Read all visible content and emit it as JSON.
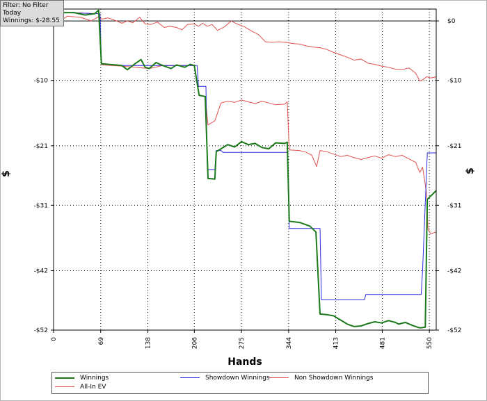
{
  "info_box": {
    "line1": "Filter: No Filter",
    "line2": "Today",
    "line3": "Winnings: $-28.55"
  },
  "colors": {
    "winnings": "#1a7a1a",
    "showdown": "#2a2ae0",
    "non_showdown": "#e05050",
    "all_in_ev": "#e05050",
    "grid": "#000000",
    "zero_line": "#000000"
  },
  "chart_data": {
    "type": "line",
    "xlabel": "Hands",
    "ylabel_left": "$",
    "ylabel_right": "$",
    "xlim": [
      0,
      560
    ],
    "ylim": [
      -52,
      2
    ],
    "x_ticks": [
      0,
      69,
      138,
      206,
      275,
      344,
      413,
      481,
      550
    ],
    "y_ticks_left": [
      -10,
      -21,
      -31,
      -42,
      -52
    ],
    "y_ticks_right": [
      0,
      -10,
      -21,
      -31,
      -42,
      -52
    ],
    "y_tick_labels_left": [
      "-$10",
      "-$21",
      "-$31",
      "-$42",
      "-$52"
    ],
    "y_tick_labels_right": [
      "$0",
      "-$10",
      "-$21",
      "-$31",
      "-$42",
      "-$52"
    ],
    "grid": true,
    "legend_position": "bottom",
    "series": [
      {
        "name": "Winnings",
        "color": "#1a7a1a",
        "points": [
          [
            0,
            0
          ],
          [
            8,
            0
          ],
          [
            14,
            1.4
          ],
          [
            30,
            1.4
          ],
          [
            46,
            1.0
          ],
          [
            60,
            1.2
          ],
          [
            66,
            1.8
          ],
          [
            70,
            -7.2
          ],
          [
            90,
            -7.4
          ],
          [
            100,
            -7.5
          ],
          [
            108,
            -8.2
          ],
          [
            118,
            -7.3
          ],
          [
            128,
            -6.5
          ],
          [
            134,
            -7.8
          ],
          [
            140,
            -8.0
          ],
          [
            150,
            -7.0
          ],
          [
            160,
            -7.5
          ],
          [
            172,
            -8.0
          ],
          [
            180,
            -7.4
          ],
          [
            192,
            -7.8
          ],
          [
            200,
            -7.3
          ],
          [
            206,
            -7.5
          ],
          [
            213,
            -12.5
          ],
          [
            222,
            -12.7
          ],
          [
            226,
            -26.5
          ],
          [
            236,
            -26.6
          ],
          [
            238,
            -22.0
          ],
          [
            245,
            -21.5
          ],
          [
            255,
            -20.8
          ],
          [
            265,
            -21.2
          ],
          [
            275,
            -20.3
          ],
          [
            285,
            -20.8
          ],
          [
            295,
            -20.6
          ],
          [
            305,
            -21.3
          ],
          [
            315,
            -21.5
          ],
          [
            325,
            -20.5
          ],
          [
            338,
            -20.6
          ],
          [
            342,
            -20.4
          ],
          [
            345,
            -33.7
          ],
          [
            360,
            -33.9
          ],
          [
            375,
            -34.5
          ],
          [
            384,
            -35.5
          ],
          [
            390,
            -49.3
          ],
          [
            400,
            -49.4
          ],
          [
            410,
            -49.6
          ],
          [
            420,
            -50.3
          ],
          [
            430,
            -51.0
          ],
          [
            440,
            -51.4
          ],
          [
            450,
            -51.3
          ],
          [
            460,
            -50.9
          ],
          [
            470,
            -50.6
          ],
          [
            480,
            -50.8
          ],
          [
            490,
            -50.4
          ],
          [
            500,
            -50.7
          ],
          [
            505,
            -51.0
          ],
          [
            515,
            -50.7
          ],
          [
            525,
            -51.2
          ],
          [
            535,
            -51.6
          ],
          [
            538,
            -51.6
          ],
          [
            544,
            -51.5
          ],
          [
            547,
            -30.0
          ],
          [
            560,
            -28.55
          ]
        ]
      },
      {
        "name": "Showdown Winnings",
        "color": "#2a2ae0",
        "points": [
          [
            0,
            0
          ],
          [
            14,
            1.4
          ],
          [
            68,
            1.2
          ],
          [
            70,
            -7.2
          ],
          [
            100,
            -7.5
          ],
          [
            210,
            -7.5
          ],
          [
            212,
            -11.0
          ],
          [
            223,
            -11.0
          ],
          [
            225,
            -25.0
          ],
          [
            236,
            -25.0
          ],
          [
            238,
            -21.8
          ],
          [
            245,
            -21.8
          ],
          [
            248,
            -22.1
          ],
          [
            342,
            -22.1
          ],
          [
            345,
            -34.9
          ],
          [
            390,
            -34.9
          ],
          [
            392,
            -46.9
          ],
          [
            455,
            -46.9
          ],
          [
            457,
            -46.0
          ],
          [
            538,
            -46.0
          ],
          [
            540,
            -42.0
          ],
          [
            547,
            -22.2
          ],
          [
            560,
            -22.2
          ]
        ]
      },
      {
        "name": "Non Showdown Winnings",
        "color": "#e05050",
        "points": [
          [
            0,
            0
          ],
          [
            10,
            0
          ],
          [
            20,
            0.8
          ],
          [
            40,
            0.6
          ],
          [
            55,
            0
          ],
          [
            66,
            0.7
          ],
          [
            70,
            0.3
          ],
          [
            80,
            0.5
          ],
          [
            92,
            0
          ],
          [
            100,
            -0.4
          ],
          [
            108,
            0
          ],
          [
            116,
            -0.3
          ],
          [
            126,
            0.6
          ],
          [
            134,
            -0.5
          ],
          [
            142,
            -0.6
          ],
          [
            152,
            -0.2
          ],
          [
            162,
            -1.1
          ],
          [
            170,
            -0.9
          ],
          [
            180,
            -1.1
          ],
          [
            188,
            -1.5
          ],
          [
            196,
            -0.6
          ],
          [
            206,
            -0.5
          ],
          [
            212,
            -0.9
          ],
          [
            218,
            -0.4
          ],
          [
            225,
            -0.9
          ],
          [
            232,
            -0.6
          ],
          [
            240,
            -1.6
          ],
          [
            250,
            -1.0
          ],
          [
            260,
            0
          ],
          [
            268,
            -0.5
          ],
          [
            278,
            -0.9
          ],
          [
            290,
            -1.7
          ],
          [
            300,
            -2.3
          ],
          [
            310,
            -3.5
          ],
          [
            320,
            -3.6
          ],
          [
            330,
            -3.5
          ],
          [
            340,
            -3.6
          ],
          [
            350,
            -3.8
          ],
          [
            360,
            -3.9
          ],
          [
            370,
            -4.2
          ],
          [
            380,
            -4.4
          ],
          [
            390,
            -4.5
          ],
          [
            400,
            -4.8
          ],
          [
            410,
            -5.3
          ],
          [
            420,
            -5.7
          ],
          [
            430,
            -6.1
          ],
          [
            440,
            -6.6
          ],
          [
            450,
            -6.4
          ],
          [
            460,
            -7.1
          ],
          [
            470,
            -7.3
          ],
          [
            480,
            -7.6
          ],
          [
            490,
            -7.8
          ],
          [
            500,
            -8.1
          ],
          [
            510,
            -8.2
          ],
          [
            520,
            -7.9
          ],
          [
            530,
            -8.8
          ],
          [
            536,
            -10.1
          ],
          [
            540,
            -9.9
          ],
          [
            546,
            -9.4
          ],
          [
            552,
            -9.6
          ],
          [
            560,
            -9.4
          ]
        ]
      },
      {
        "name": "All-In EV",
        "color": "#e05050",
        "points": [
          [
            0,
            0
          ],
          [
            14,
            1.4
          ],
          [
            30,
            1.4
          ],
          [
            60,
            1.2
          ],
          [
            66,
            1.8
          ],
          [
            70,
            -7.4
          ],
          [
            100,
            -7.6
          ],
          [
            140,
            -8.0
          ],
          [
            160,
            -7.5
          ],
          [
            206,
            -7.5
          ],
          [
            213,
            -12.5
          ],
          [
            222,
            -12.7
          ],
          [
            226,
            -17.5
          ],
          [
            236,
            -16.8
          ],
          [
            245,
            -13.8
          ],
          [
            255,
            -13.5
          ],
          [
            265,
            -13.7
          ],
          [
            275,
            -13.3
          ],
          [
            285,
            -13.6
          ],
          [
            295,
            -13.9
          ],
          [
            305,
            -13.5
          ],
          [
            315,
            -13.8
          ],
          [
            325,
            -14.1
          ],
          [
            338,
            -14.0
          ],
          [
            342,
            -13.6
          ],
          [
            345,
            -21.7
          ],
          [
            360,
            -21.8
          ],
          [
            370,
            -22.1
          ],
          [
            378,
            -22.6
          ],
          [
            385,
            -24.5
          ],
          [
            390,
            -21.8
          ],
          [
            400,
            -22.0
          ],
          [
            410,
            -22.4
          ],
          [
            420,
            -22.8
          ],
          [
            430,
            -22.6
          ],
          [
            440,
            -23.0
          ],
          [
            450,
            -23.3
          ],
          [
            460,
            -23.0
          ],
          [
            470,
            -22.7
          ],
          [
            480,
            -23.1
          ],
          [
            490,
            -22.5
          ],
          [
            500,
            -22.8
          ],
          [
            510,
            -22.6
          ],
          [
            520,
            -23.2
          ],
          [
            530,
            -23.8
          ],
          [
            536,
            -25.5
          ],
          [
            540,
            -24.6
          ],
          [
            546,
            -29.1
          ],
          [
            548,
            -35.0
          ],
          [
            552,
            -35.8
          ],
          [
            560,
            -35.5
          ]
        ]
      }
    ]
  }
}
